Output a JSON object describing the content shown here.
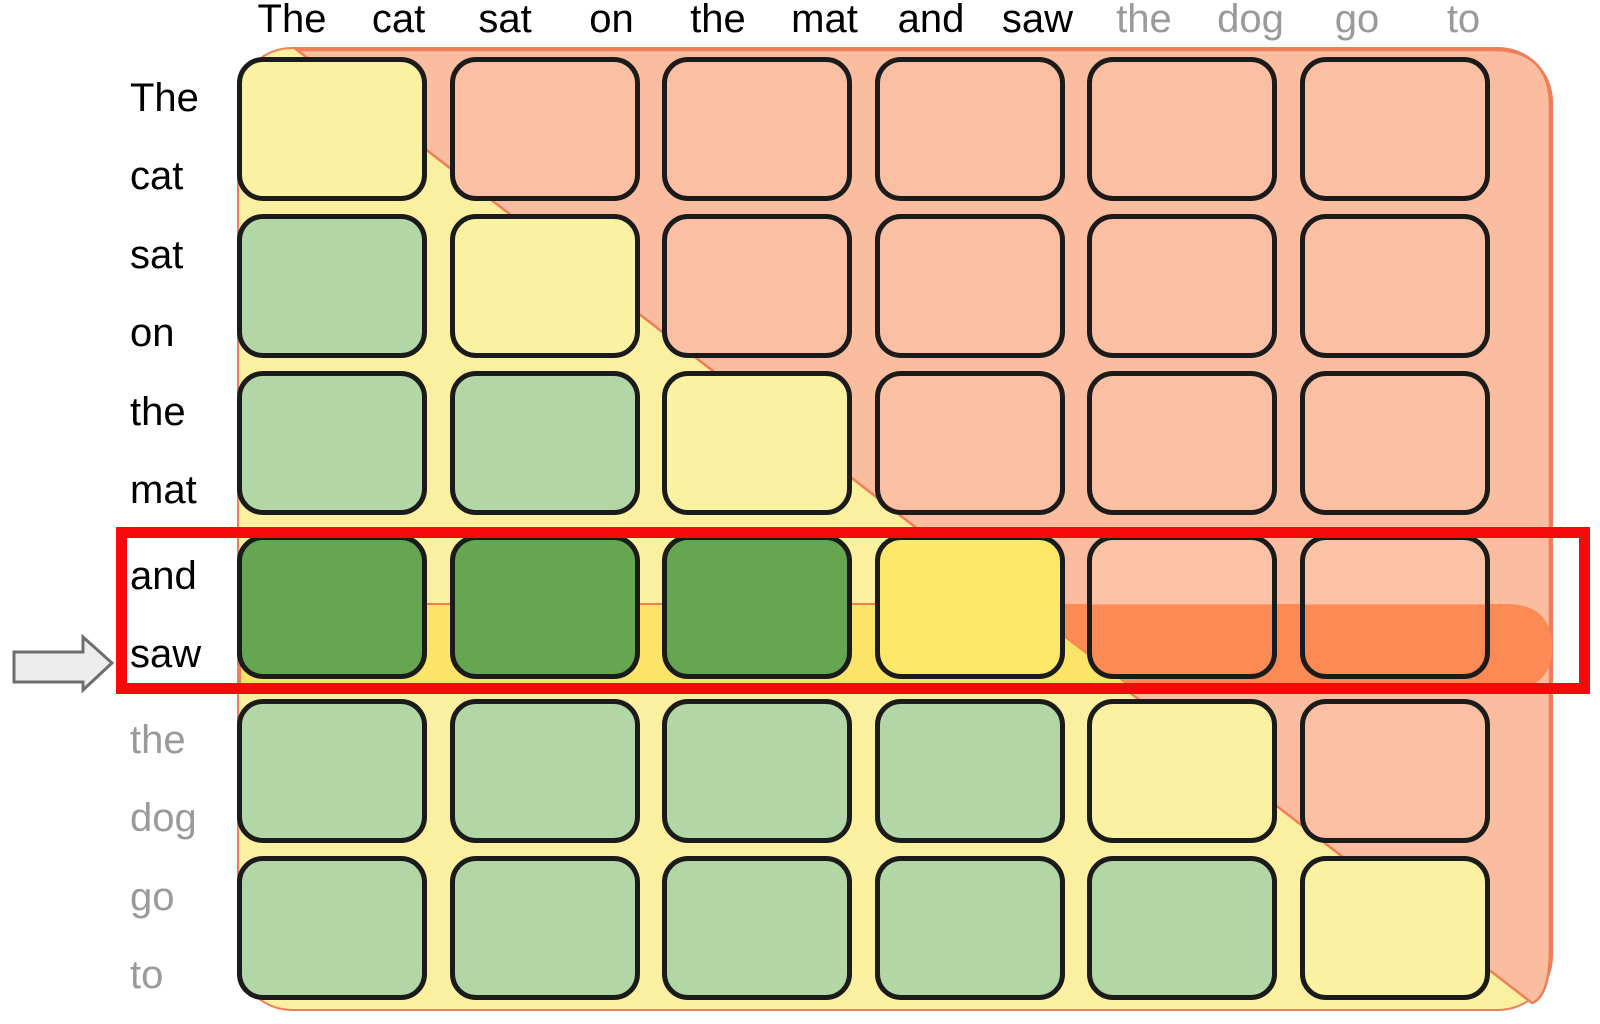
{
  "tokens_x": [
    {
      "text": "The",
      "state": "done"
    },
    {
      "text": "cat",
      "state": "done"
    },
    {
      "text": "sat",
      "state": "done"
    },
    {
      "text": "on",
      "state": "done"
    },
    {
      "text": "the",
      "state": "done"
    },
    {
      "text": "mat",
      "state": "done"
    },
    {
      "text": "and",
      "state": "done"
    },
    {
      "text": "saw",
      "state": "done"
    },
    {
      "text": "the",
      "state": "future"
    },
    {
      "text": "dog",
      "state": "future"
    },
    {
      "text": "go",
      "state": "future"
    },
    {
      "text": "to",
      "state": "future"
    }
  ],
  "tokens_y": [
    {
      "text": "The",
      "state": "done"
    },
    {
      "text": "cat",
      "state": "done"
    },
    {
      "text": "sat",
      "state": "done"
    },
    {
      "text": "on",
      "state": "done"
    },
    {
      "text": "the",
      "state": "done"
    },
    {
      "text": "mat",
      "state": "done"
    },
    {
      "text": "and",
      "state": "done"
    },
    {
      "text": "saw",
      "state": "done"
    },
    {
      "text": "the",
      "state": "future"
    },
    {
      "text": "dog",
      "state": "future"
    },
    {
      "text": "go",
      "state": "future"
    },
    {
      "text": "to",
      "state": "future"
    }
  ],
  "grid": [
    [
      "self",
      "future",
      "future",
      "future",
      "future",
      "future"
    ],
    [
      "past",
      "self",
      "future",
      "future",
      "future",
      "future"
    ],
    [
      "past",
      "past",
      "self",
      "future",
      "future",
      "future"
    ],
    [
      "past-active",
      "past-active",
      "past-active",
      "self-active",
      "future-active",
      "future-active"
    ],
    [
      "past",
      "past",
      "past",
      "past",
      "self",
      "future"
    ],
    [
      "past",
      "past",
      "past",
      "past",
      "past",
      "self"
    ]
  ],
  "highlighted_row": {
    "row_index": 4,
    "tokens": [
      "and",
      "saw"
    ]
  },
  "colors": {
    "cell_past": "#B3D6A6",
    "cell_self": "#FAF1A2",
    "cell_future": "#FBC0A3",
    "cell_past_active": "#66A651",
    "cell_self_active": "#FDE869",
    "cell_future_active_top": "#FBC2A6",
    "cell_future_active_bottom": "#FB8A55",
    "bg_yellow": "#FAF0A0",
    "bg_salmon": "#FABDA0",
    "band_yellow": "#FBE468",
    "band_orange": "#FB8A55",
    "edge_line": "#EF7E57",
    "cell_border": "#1B1B1B",
    "highlight_red": "#F60909",
    "arrow_fill": "#EDEDED",
    "arrow_stroke": "#6E6E6E",
    "label_done": "#000000",
    "label_future": "#9A9A9A"
  }
}
